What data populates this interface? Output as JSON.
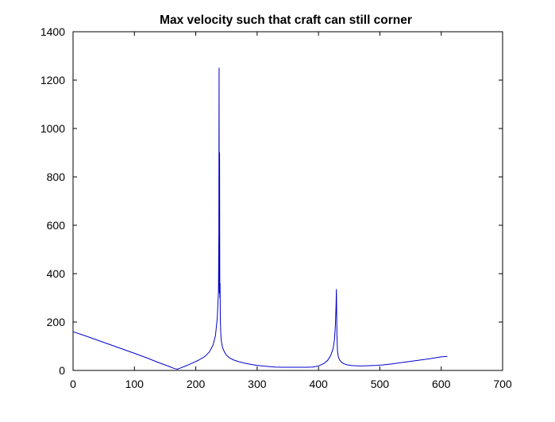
{
  "chart_data": {
    "type": "line",
    "title": "Max velocity such that craft can still corner",
    "xlabel": "",
    "ylabel": "",
    "xlim": [
      0,
      700
    ],
    "ylim": [
      0,
      1400
    ],
    "xticks": [
      0,
      100,
      200,
      300,
      400,
      500,
      600,
      700
    ],
    "yticks": [
      0,
      200,
      400,
      600,
      800,
      1000,
      1200,
      1400
    ],
    "grid": false,
    "legend": "none",
    "series": [
      {
        "color": "#0000cc",
        "x": [
          0,
          20,
          40,
          60,
          80,
          100,
          120,
          140,
          155,
          165,
          170,
          175,
          185,
          195,
          205,
          215,
          222,
          228,
          232,
          235,
          237,
          237.6,
          238,
          238.4,
          238.8,
          239.2,
          239.6,
          240,
          240.4,
          241,
          242,
          244,
          247,
          250,
          255,
          262,
          270,
          280,
          290,
          300,
          310,
          320,
          330,
          340,
          350,
          360,
          370,
          380,
          390,
          395,
          400,
          405,
          410,
          415,
          420,
          424,
          426,
          427.5,
          428.5,
          429.2,
          429.6,
          430,
          430.5,
          431,
          432,
          434,
          437,
          441,
          447,
          455,
          465,
          475,
          485,
          495,
          505,
          520,
          540,
          560,
          580,
          600,
          610
        ],
        "y": [
          160,
          143,
          125,
          107,
          89,
          71,
          52,
          32,
          18,
          8,
          5,
          10,
          20,
          31,
          43,
          58,
          76,
          104,
          143,
          215,
          330,
          560,
          1250,
          320,
          900,
          300,
          360,
          210,
          180,
          140,
          115,
          92,
          75,
          63,
          52,
          43,
          36,
          30,
          25,
          21,
          18,
          16,
          14,
          13,
          13,
          13,
          13,
          13,
          14,
          16,
          19,
          24,
          31,
          42,
          62,
          92,
          128,
          185,
          260,
          335,
          240,
          150,
          110,
          80,
          60,
          45,
          35,
          28,
          23,
          20,
          19,
          19,
          20,
          21,
          23,
          27,
          34,
          41,
          48,
          56,
          58
        ]
      }
    ]
  }
}
